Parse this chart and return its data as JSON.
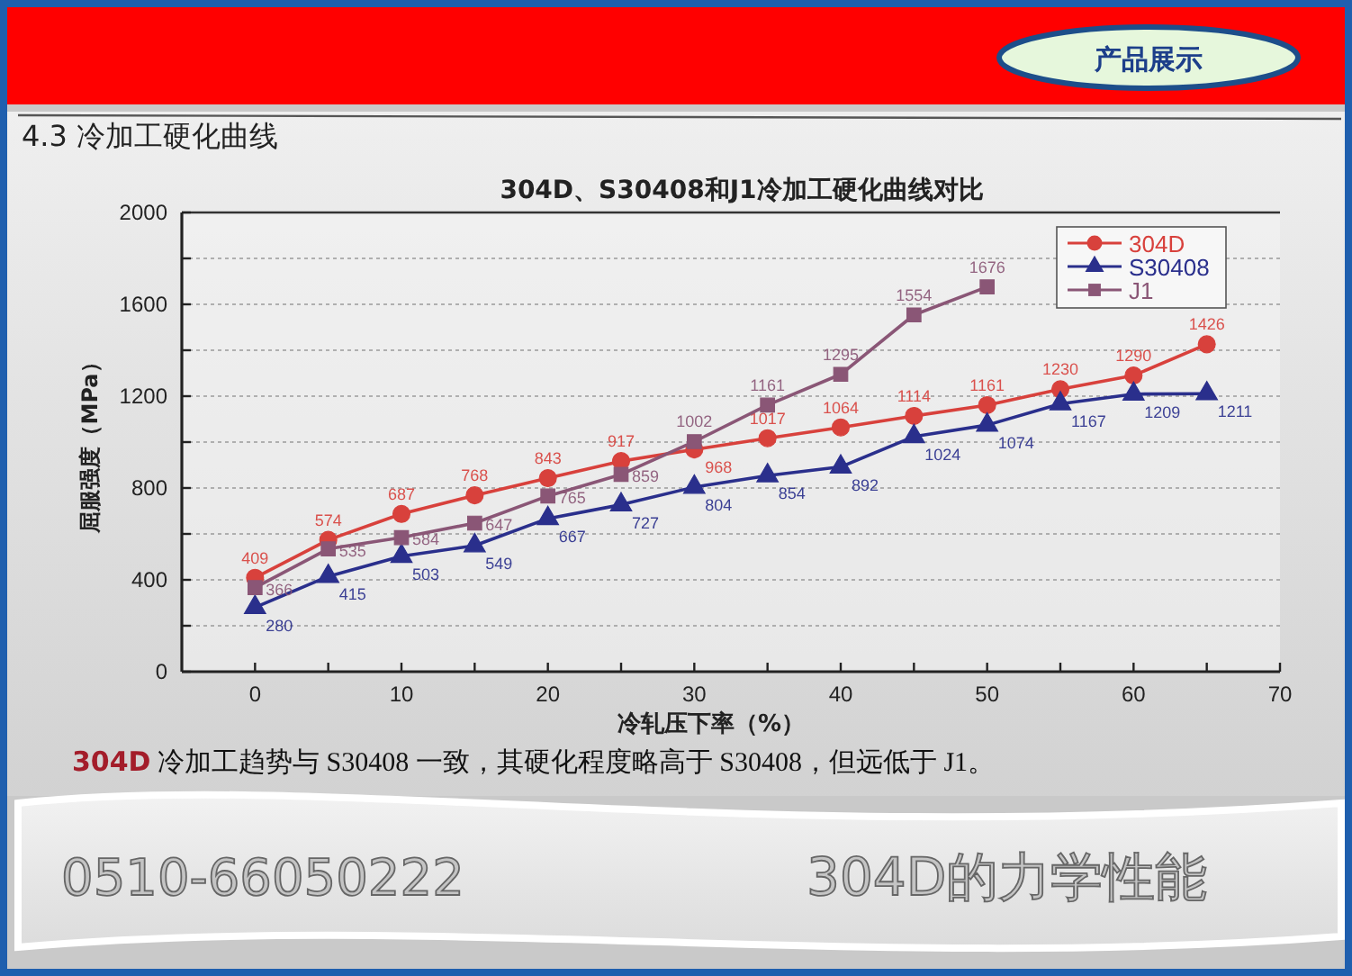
{
  "chart_data": {
    "type": "line",
    "title": "304D、S30408和J1冷加工硬化曲线对比",
    "xlabel": "冷轧压下率（%）",
    "ylabel": "屈服强度（MPa）",
    "annotations": [
      "产品展示",
      "4.3 冷加工硬化曲线",
      "304D 冷加工趋势与 S30408 一致，其硬化程度略高于 S30408，但远低于 J1。",
      "0510-66050222",
      "304D的力学性能"
    ],
    "x": [
      0,
      5,
      10,
      15,
      20,
      25,
      30,
      35,
      40,
      45,
      50,
      55,
      60,
      65
    ],
    "series": [
      {
        "name": "304D",
        "color": "#d8413c",
        "marker": "circle",
        "values": [
          409,
          574,
          687,
          768,
          843,
          917,
          968,
          1017,
          1064,
          1114,
          1161,
          1230,
          1290,
          1426
        ]
      },
      {
        "name": "S30408",
        "color": "#2a2f8c",
        "marker": "triangle",
        "values": [
          280,
          415,
          503,
          549,
          667,
          727,
          804,
          854,
          892,
          1024,
          1074,
          1167,
          1209,
          1211
        ]
      },
      {
        "name": "J1",
        "color": "#8a5676",
        "marker": "square",
        "x": [
          0,
          5,
          10,
          15,
          20,
          25,
          30,
          35,
          40,
          45,
          50
        ],
        "values": [
          366,
          535,
          584,
          647,
          765,
          859,
          1002,
          1161,
          1295,
          1554,
          1676
        ]
      }
    ],
    "xlim": [
      -5,
      70
    ],
    "xticks": [
      0,
      {
        "value": 5,
        "label": null
      },
      10,
      {
        "value": 15,
        "label": null
      },
      20,
      {
        "value": 25,
        "label": null
      },
      30,
      {
        "value": 35,
        "label": null
      },
      40,
      {
        "value": 45,
        "label": null
      },
      50,
      {
        "value": 55,
        "label": null
      },
      60,
      {
        "value": 65,
        "label": null
      },
      70
    ],
    "ylim": [
      0,
      2000
    ],
    "yticks": [
      0,
      {
        "value": 200,
        "label": null
      },
      400,
      {
        "value": 600,
        "label": null
      },
      800,
      {
        "value": 1000,
        "label": null
      },
      1200,
      {
        "value": 1400,
        "label": null
      },
      1600,
      {
        "value": 1800,
        "label": null
      },
      2000
    ],
    "grid": "y",
    "legend": "top right",
    "line_style": "solid",
    "data_labels": true
  }
}
